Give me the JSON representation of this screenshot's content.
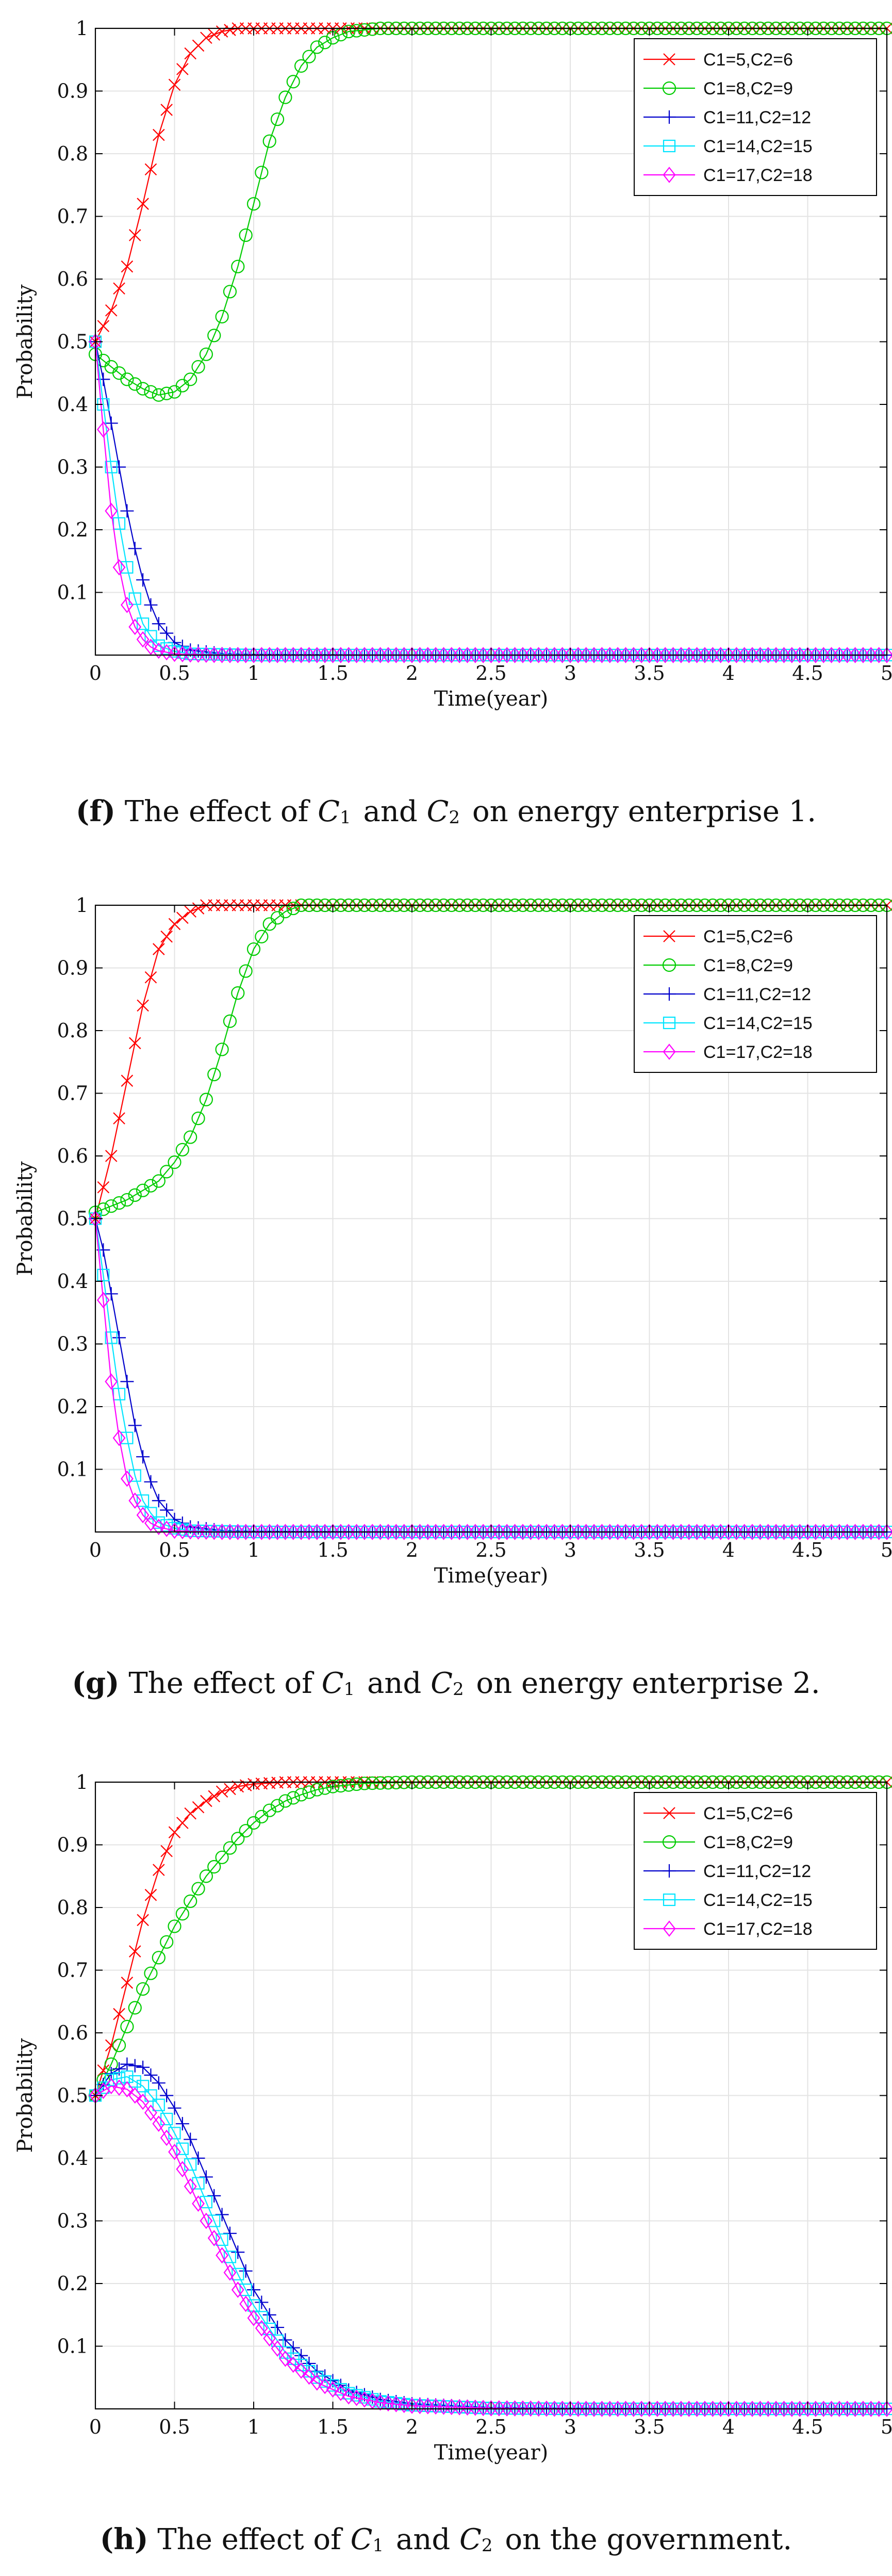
{
  "colors": {
    "c1": "#ff0000",
    "c2": "#00cc00",
    "c3": "#0000cc",
    "c4": "#00e5ff",
    "c5": "#ff00ff",
    "grid": "#e3e3e3",
    "axis": "#000000"
  },
  "chart_data": [
    {
      "type": "line",
      "title": "",
      "xlabel": "Time(year)",
      "ylabel": "Probability",
      "xlim": [
        0,
        5
      ],
      "ylim": [
        0,
        1
      ],
      "xticks": [
        "0",
        "0.5",
        "1",
        "1.5",
        "2",
        "2.5",
        "3",
        "3.5",
        "4",
        "4.5",
        "5"
      ],
      "yticks": [
        "0.1",
        "0.2",
        "0.3",
        "0.4",
        "0.5",
        "0.6",
        "0.7",
        "0.8",
        "0.9",
        "1"
      ],
      "grid": true,
      "legend_position": "top-right",
      "series": [
        {
          "name": "C1=5,C2=6",
          "marker": "x",
          "x": [
            0,
            0.1,
            0.2,
            0.3,
            0.4,
            0.5,
            0.6,
            0.7,
            0.8,
            0.9,
            1.0,
            1.2,
            1.5,
            2,
            3,
            4,
            5
          ],
          "y": [
            0.5,
            0.55,
            0.62,
            0.72,
            0.83,
            0.91,
            0.96,
            0.985,
            0.995,
            1,
            1,
            1,
            1,
            1,
            1,
            1,
            1
          ]
        },
        {
          "name": "C1=8,C2=9",
          "marker": "o",
          "x": [
            0,
            0.1,
            0.2,
            0.3,
            0.4,
            0.5,
            0.6,
            0.7,
            0.8,
            0.9,
            1.0,
            1.1,
            1.2,
            1.3,
            1.4,
            1.5,
            1.6,
            1.8,
            2,
            3,
            4,
            5
          ],
          "y": [
            0.48,
            0.46,
            0.44,
            0.425,
            0.415,
            0.42,
            0.44,
            0.48,
            0.54,
            0.62,
            0.72,
            0.82,
            0.89,
            0.94,
            0.97,
            0.985,
            0.995,
            1,
            1,
            1,
            1,
            1
          ]
        },
        {
          "name": "C1=11,C2=12",
          "marker": "+",
          "x": [
            0,
            0.05,
            0.1,
            0.15,
            0.2,
            0.25,
            0.3,
            0.35,
            0.4,
            0.5,
            0.6,
            0.8,
            1,
            2,
            3,
            4,
            5
          ],
          "y": [
            0.5,
            0.44,
            0.37,
            0.3,
            0.23,
            0.17,
            0.12,
            0.08,
            0.05,
            0.02,
            0.008,
            0.002,
            0.001,
            0,
            0,
            0,
            0
          ]
        },
        {
          "name": "C1=14,C2=15",
          "marker": "square",
          "x": [
            0,
            0.05,
            0.1,
            0.15,
            0.2,
            0.25,
            0.3,
            0.35,
            0.4,
            0.5,
            0.6,
            0.8,
            1,
            2,
            3,
            4,
            5
          ],
          "y": [
            0.5,
            0.4,
            0.3,
            0.21,
            0.14,
            0.09,
            0.05,
            0.03,
            0.015,
            0.006,
            0.002,
            0.001,
            0,
            0,
            0,
            0,
            0
          ]
        },
        {
          "name": "C1=17,C2=18",
          "marker": "diamond",
          "x": [
            0,
            0.05,
            0.1,
            0.15,
            0.2,
            0.25,
            0.3,
            0.35,
            0.4,
            0.5,
            0.6,
            0.8,
            1,
            2,
            3,
            4,
            5
          ],
          "y": [
            0.5,
            0.36,
            0.23,
            0.14,
            0.08,
            0.045,
            0.025,
            0.013,
            0.007,
            0.002,
            0.001,
            0,
            0,
            0,
            0,
            0,
            0
          ]
        }
      ],
      "caption": {
        "label": "(f)",
        "prefix": " The effect of ",
        "var1": "C",
        "sub1": "1",
        "mid": " and ",
        "var2": "C",
        "sub2": "2",
        "suffix": " on energy enterprise 1."
      }
    },
    {
      "type": "line",
      "title": "",
      "xlabel": "Time(year)",
      "ylabel": "Probability",
      "xlim": [
        0,
        5
      ],
      "ylim": [
        0,
        1
      ],
      "xticks": [
        "0",
        "0.5",
        "1",
        "1.5",
        "2",
        "2.5",
        "3",
        "3.5",
        "4",
        "4.5",
        "5"
      ],
      "yticks": [
        "0.1",
        "0.2",
        "0.3",
        "0.4",
        "0.5",
        "0.6",
        "0.7",
        "0.8",
        "0.9",
        "1"
      ],
      "grid": true,
      "legend_position": "top-right",
      "series": [
        {
          "name": "C1=5,C2=6",
          "marker": "x",
          "x": [
            0,
            0.1,
            0.2,
            0.3,
            0.4,
            0.5,
            0.6,
            0.7,
            0.8,
            0.9,
            1,
            1.5,
            2,
            3,
            4,
            5
          ],
          "y": [
            0.5,
            0.6,
            0.72,
            0.84,
            0.93,
            0.97,
            0.99,
            1,
            1,
            1,
            1,
            1,
            1,
            1,
            1,
            1
          ]
        },
        {
          "name": "C1=8,C2=9",
          "marker": "o",
          "x": [
            0,
            0.1,
            0.2,
            0.3,
            0.4,
            0.5,
            0.6,
            0.7,
            0.8,
            0.9,
            1.0,
            1.1,
            1.2,
            1.3,
            1.4,
            1.5,
            1.7,
            2,
            3,
            4,
            5
          ],
          "y": [
            0.51,
            0.52,
            0.53,
            0.545,
            0.56,
            0.59,
            0.63,
            0.69,
            0.77,
            0.86,
            0.93,
            0.97,
            0.99,
            1,
            1,
            1,
            1,
            1,
            1,
            1,
            1
          ]
        },
        {
          "name": "C1=11,C2=12",
          "marker": "+",
          "x": [
            0,
            0.05,
            0.1,
            0.15,
            0.2,
            0.25,
            0.3,
            0.35,
            0.4,
            0.5,
            0.6,
            0.8,
            1,
            2,
            3,
            4,
            5
          ],
          "y": [
            0.5,
            0.45,
            0.38,
            0.31,
            0.24,
            0.17,
            0.12,
            0.08,
            0.05,
            0.02,
            0.008,
            0.002,
            0.001,
            0,
            0,
            0,
            0
          ]
        },
        {
          "name": "C1=14,C2=15",
          "marker": "square",
          "x": [
            0,
            0.05,
            0.1,
            0.15,
            0.2,
            0.25,
            0.3,
            0.35,
            0.4,
            0.5,
            0.6,
            0.8,
            1,
            2,
            3,
            4,
            5
          ],
          "y": [
            0.5,
            0.41,
            0.31,
            0.22,
            0.15,
            0.09,
            0.05,
            0.03,
            0.015,
            0.006,
            0.002,
            0.001,
            0,
            0,
            0,
            0,
            0
          ]
        },
        {
          "name": "C1=17,C2=18",
          "marker": "diamond",
          "x": [
            0,
            0.05,
            0.1,
            0.15,
            0.2,
            0.25,
            0.3,
            0.35,
            0.4,
            0.5,
            0.6,
            0.8,
            1,
            2,
            3,
            4,
            5
          ],
          "y": [
            0.5,
            0.37,
            0.24,
            0.15,
            0.085,
            0.05,
            0.027,
            0.014,
            0.008,
            0.002,
            0.001,
            0,
            0,
            0,
            0,
            0,
            0
          ]
        }
      ],
      "caption": {
        "label": "(g)",
        "prefix": " The effect of ",
        "var1": "C",
        "sub1": "1",
        "mid": " and ",
        "var2": "C",
        "sub2": "2",
        "suffix": " on energy enterprise 2."
      }
    },
    {
      "type": "line",
      "title": "",
      "xlabel": "Time(year)",
      "ylabel": "Probability",
      "xlim": [
        0,
        5
      ],
      "ylim": [
        0,
        1
      ],
      "xticks": [
        "0",
        "0.5",
        "1",
        "1.5",
        "2",
        "2.5",
        "3",
        "3.5",
        "4",
        "4.5",
        "5"
      ],
      "yticks": [
        "0.1",
        "0.2",
        "0.3",
        "0.4",
        "0.5",
        "0.6",
        "0.7",
        "0.8",
        "0.9",
        "1"
      ],
      "grid": true,
      "legend_position": "top-right",
      "series": [
        {
          "name": "C1=5,C2=6",
          "marker": "x",
          "x": [
            0,
            0.1,
            0.2,
            0.3,
            0.4,
            0.5,
            0.6,
            0.7,
            0.8,
            0.9,
            1,
            1.2,
            1.5,
            2,
            3,
            4,
            5
          ],
          "y": [
            0.5,
            0.58,
            0.68,
            0.78,
            0.86,
            0.92,
            0.95,
            0.97,
            0.985,
            0.993,
            0.997,
            1,
            1,
            1,
            1,
            1,
            1
          ]
        },
        {
          "name": "C1=8,C2=9",
          "marker": "o",
          "x": [
            0,
            0.1,
            0.2,
            0.3,
            0.4,
            0.5,
            0.6,
            0.7,
            0.8,
            0.9,
            1.0,
            1.1,
            1.2,
            1.3,
            1.4,
            1.5,
            1.7,
            2,
            3,
            4,
            5
          ],
          "y": [
            0.5,
            0.55,
            0.61,
            0.67,
            0.72,
            0.77,
            0.81,
            0.85,
            0.88,
            0.91,
            0.935,
            0.955,
            0.97,
            0.98,
            0.988,
            0.993,
            0.998,
            1,
            1,
            1,
            1
          ]
        },
        {
          "name": "C1=11,C2=12",
          "marker": "+",
          "x": [
            0,
            0.1,
            0.2,
            0.3,
            0.4,
            0.5,
            0.6,
            0.7,
            0.8,
            0.9,
            1.0,
            1.2,
            1.4,
            1.6,
            1.8,
            2,
            2.5,
            3,
            4,
            5
          ],
          "y": [
            0.5,
            0.535,
            0.55,
            0.545,
            0.52,
            0.48,
            0.43,
            0.37,
            0.31,
            0.25,
            0.19,
            0.11,
            0.06,
            0.03,
            0.015,
            0.008,
            0.002,
            0.001,
            0,
            0
          ]
        },
        {
          "name": "C1=14,C2=15",
          "marker": "square",
          "x": [
            0,
            0.1,
            0.2,
            0.3,
            0.4,
            0.5,
            0.6,
            0.7,
            0.8,
            0.9,
            1.0,
            1.2,
            1.4,
            1.6,
            1.8,
            2,
            2.5,
            3,
            4,
            5
          ],
          "y": [
            0.5,
            0.525,
            0.53,
            0.515,
            0.485,
            0.44,
            0.39,
            0.33,
            0.27,
            0.215,
            0.165,
            0.09,
            0.05,
            0.025,
            0.012,
            0.006,
            0.001,
            0,
            0,
            0
          ]
        },
        {
          "name": "C1=17,C2=18",
          "marker": "diamond",
          "x": [
            0,
            0.1,
            0.2,
            0.3,
            0.4,
            0.5,
            0.6,
            0.7,
            0.8,
            0.9,
            1.0,
            1.2,
            1.4,
            1.6,
            1.8,
            2,
            2.5,
            3,
            4,
            5
          ],
          "y": [
            0.5,
            0.515,
            0.51,
            0.49,
            0.455,
            0.41,
            0.355,
            0.3,
            0.245,
            0.19,
            0.145,
            0.08,
            0.042,
            0.02,
            0.01,
            0.005,
            0.001,
            0,
            0,
            0
          ]
        }
      ],
      "caption": {
        "label": "(h)",
        "prefix": " The effect of ",
        "var1": "C",
        "sub1": "1",
        "mid": " and ",
        "var2": "C",
        "sub2": "2",
        "suffix": " on the government."
      }
    }
  ]
}
